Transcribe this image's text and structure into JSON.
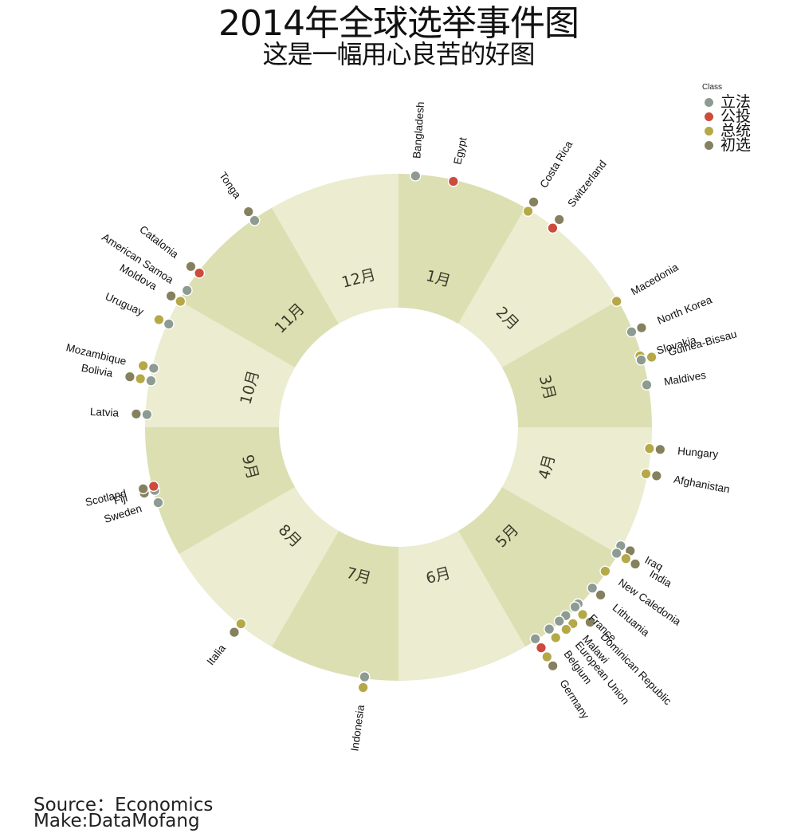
{
  "title": "2014年全球选举事件图",
  "subtitle": "这是一幅用心良苦的好图",
  "source_line": "Source：Economics",
  "make_line": "Make:DataMofang",
  "colors": {
    "band_dark": "#dcdfb1",
    "band_light": "#ebecd0",
    "dot_stroke": "#ffffff"
  },
  "legend": {
    "title": "Class",
    "items": [
      {
        "label": "立法",
        "color": "#8d9b93"
      },
      {
        "label": "公投",
        "color": "#cc4b3a"
      },
      {
        "label": "总统",
        "color": "#b5a847"
      },
      {
        "label": "初选",
        "color": "#85805e"
      }
    ]
  },
  "chart_data": {
    "type": "polar-scatter",
    "months": [
      "1月",
      "2月",
      "3月",
      "4月",
      "5月",
      "6月",
      "7月",
      "8月",
      "9月",
      "10月",
      "11月",
      "12月"
    ],
    "class_order": [
      "立法",
      "公投",
      "总统",
      "初选"
    ],
    "events": [
      {
        "country": "Bangladesh",
        "month": 1,
        "day": 5,
        "classes": [
          "立法"
        ]
      },
      {
        "country": "Egypt",
        "month": 1,
        "day": 14,
        "classes": [
          "公投"
        ]
      },
      {
        "country": "Costa Rica",
        "month": 2,
        "day": 2,
        "classes": [
          "总统",
          "初选"
        ]
      },
      {
        "country": "Switzerland",
        "month": 2,
        "day": 9,
        "classes": [
          "公投",
          "初选"
        ]
      },
      {
        "country": "Macedonia",
        "month": 3,
        "day": 1,
        "classes": [
          "总统"
        ]
      },
      {
        "country": "North Korea",
        "month": 3,
        "day": 9,
        "classes": [
          "立法",
          "初选"
        ]
      },
      {
        "country": "Slovakia",
        "month": 3,
        "day": 15,
        "classes": [
          "总统"
        ]
      },
      {
        "country": "Guinea-Bissau",
        "month": 3,
        "day": 16,
        "classes": [
          "立法",
          "总统"
        ]
      },
      {
        "country": "Maldives",
        "month": 3,
        "day": 22,
        "classes": [
          "立法"
        ]
      },
      {
        "country": "Hungary",
        "month": 4,
        "day": 6,
        "classes": [
          "总统",
          "初选"
        ]
      },
      {
        "country": "Afghanistan",
        "month": 4,
        "day": 12,
        "classes": [
          "总统",
          "初选"
        ]
      },
      {
        "country": "Iraq",
        "month": 4,
        "day": 30,
        "classes": [
          "立法",
          "初选"
        ]
      },
      {
        "country": "India",
        "month": 5,
        "day": 1,
        "classes": [
          "立法",
          "总统",
          "初选"
        ]
      },
      {
        "country": "New Caledonia",
        "month": 5,
        "day": 6,
        "classes": [
          "总统"
        ]
      },
      {
        "country": "Lithuania",
        "month": 5,
        "day": 11,
        "classes": [
          "立法",
          "初选"
        ]
      },
      {
        "country": "France",
        "month": 5,
        "day": 16,
        "classes": [
          "立法"
        ]
      },
      {
        "country": "Dominican Republic",
        "month": 5,
        "day": 17,
        "classes": [
          "立法",
          "总统",
          "初选"
        ]
      },
      {
        "country": "Malawi",
        "month": 5,
        "day": 20,
        "classes": [
          "立法",
          "总统"
        ]
      },
      {
        "country": "European Union",
        "month": 5,
        "day": 22,
        "classes": [
          "立法",
          "总统"
        ]
      },
      {
        "country": "Belgium",
        "month": 5,
        "day": 25,
        "classes": [
          "立法",
          "总统"
        ]
      },
      {
        "country": "Germany",
        "month": 5,
        "day": 29,
        "classes": [
          "立法",
          "公投",
          "总统",
          "初选"
        ]
      },
      {
        "country": "Indonesia",
        "month": 7,
        "day": 9,
        "classes": [
          "立法",
          "总统"
        ]
      },
      {
        "country": "Italia",
        "month": 8,
        "day": 10,
        "classes": [
          "总统",
          "初选"
        ]
      },
      {
        "country": "Fiji",
        "month": 9,
        "day": 17,
        "classes": [
          "立法",
          "初选"
        ]
      },
      {
        "country": "Sweden",
        "month": 9,
        "day": 14,
        "classes": [
          "立法"
        ]
      },
      {
        "country": "Scotland",
        "month": 9,
        "day": 18,
        "classes": [
          "公投",
          "初选"
        ]
      },
      {
        "country": "Latvia",
        "month": 10,
        "day": 4,
        "classes": [
          "立法",
          "初选"
        ]
      },
      {
        "country": "Bolivia",
        "month": 10,
        "day": 12,
        "classes": [
          "立法",
          "总统",
          "初选"
        ]
      },
      {
        "country": "Mozambique",
        "month": 10,
        "day": 15,
        "classes": [
          "立法",
          "总统"
        ]
      },
      {
        "country": "Uruguay",
        "month": 10,
        "day": 26,
        "classes": [
          "立法",
          "总统"
        ]
      },
      {
        "country": "Moldova",
        "month": 11,
        "day": 1,
        "classes": [
          "总统",
          "初选"
        ]
      },
      {
        "country": "American Samoa",
        "month": 11,
        "day": 4,
        "classes": [
          "立法"
        ]
      },
      {
        "country": "Catalonia",
        "month": 11,
        "day": 9,
        "classes": [
          "公投",
          "初选"
        ]
      },
      {
        "country": "Tonga",
        "month": 11,
        "day": 27,
        "classes": [
          "立法",
          "初选"
        ]
      }
    ]
  }
}
